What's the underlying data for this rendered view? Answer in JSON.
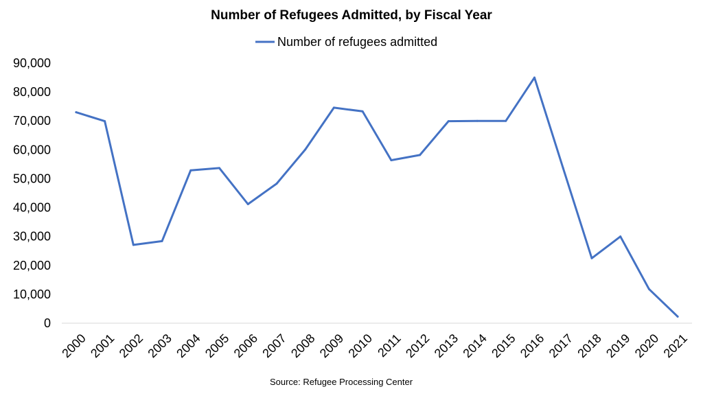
{
  "chart_data": {
    "type": "line",
    "title": "Number of Refugees Admitted, by Fiscal Year",
    "xlabel": "",
    "ylabel": "",
    "categories": [
      "2000",
      "2001",
      "2002",
      "2003",
      "2004",
      "2005",
      "2006",
      "2007",
      "2008",
      "2009",
      "2010",
      "2011",
      "2012",
      "2013",
      "2014",
      "2015",
      "2016",
      "2017",
      "2018",
      "2019",
      "2020",
      "2021"
    ],
    "series": [
      {
        "name": "Number of refugees admitted",
        "color": "#4472C4",
        "values": [
          73000,
          69900,
          27100,
          28400,
          52900,
          53700,
          41200,
          48300,
          60100,
          74600,
          73300,
          56400,
          58200,
          69900,
          70000,
          70000,
          85000,
          53700,
          22500,
          30000,
          11800,
          2300
        ]
      }
    ],
    "ylim": [
      0,
      90000
    ],
    "yticks": [
      "0",
      "10,000",
      "20,000",
      "30,000",
      "40,000",
      "50,000",
      "60,000",
      "70,000",
      "80,000",
      "90,000"
    ],
    "grid": false,
    "legend_position": "top-center",
    "source": "Source: Refugee Processing Center"
  }
}
